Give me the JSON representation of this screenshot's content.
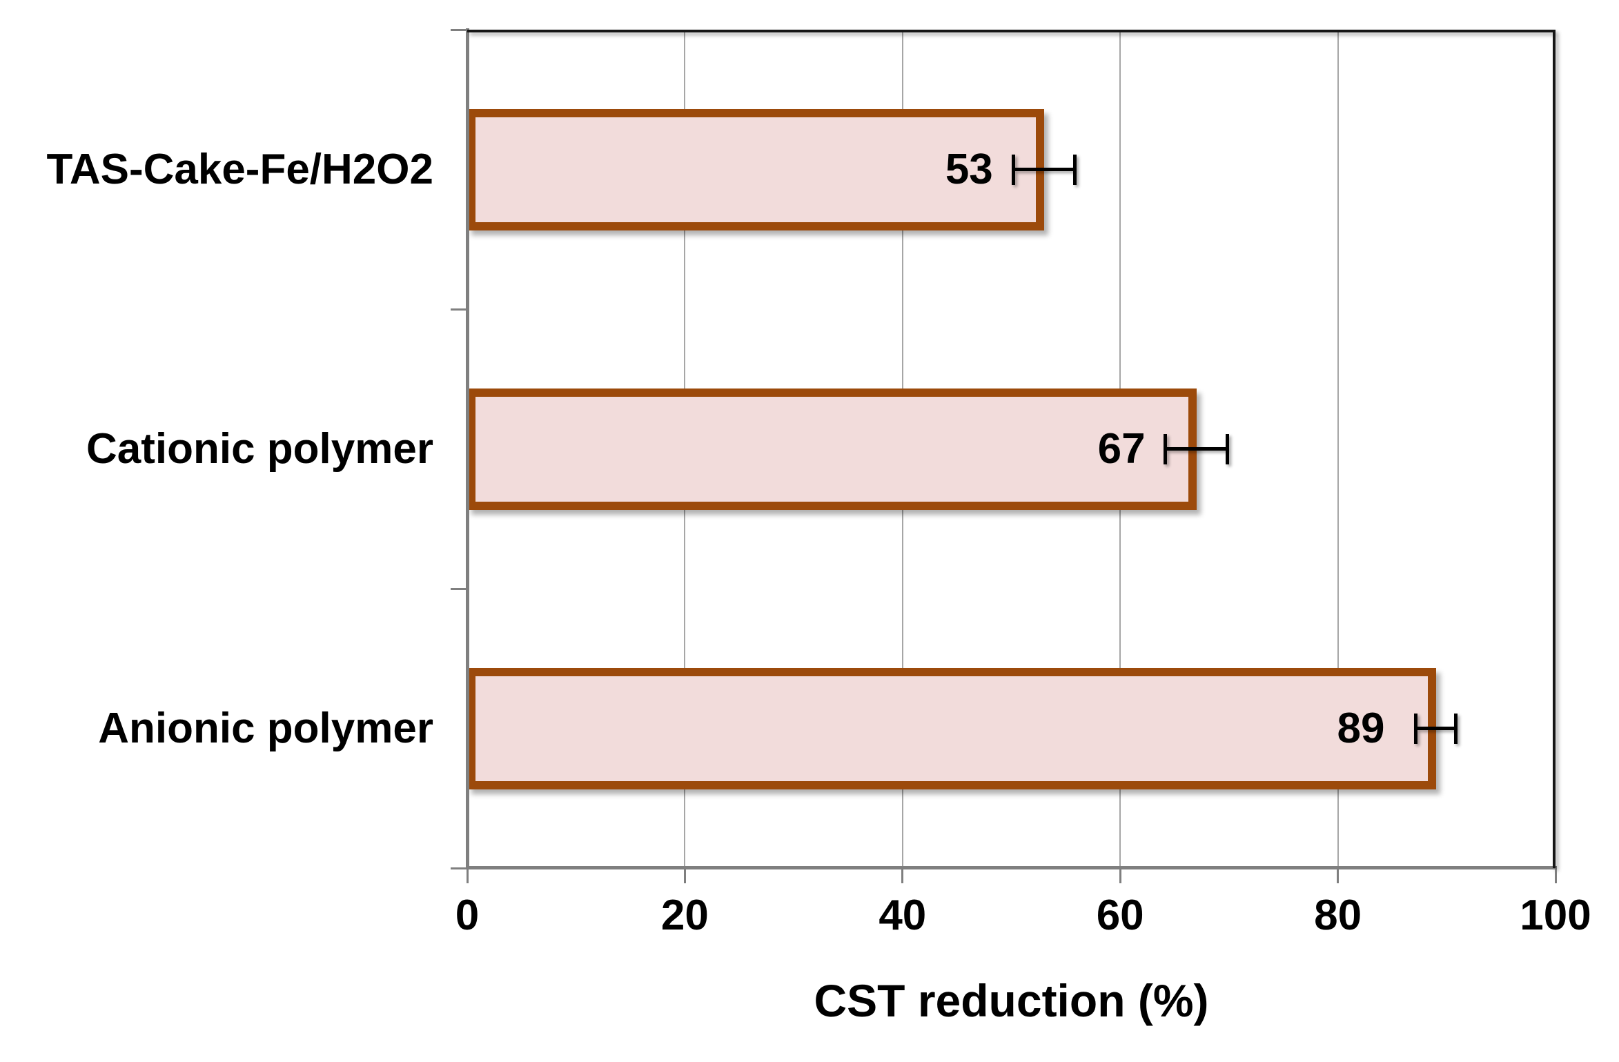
{
  "figure": {
    "background": "#FFFFFF"
  },
  "chart_data": {
    "type": "bar",
    "orientation": "horizontal",
    "title": "",
    "xlabel": "CST reduction (%)",
    "ylabel": "",
    "categories": [
      "TAS-Cake-Fe/H2O2",
      "Cationic polymer",
      "Anionic polymer"
    ],
    "values": [
      53,
      67,
      89
    ],
    "value_labels": [
      "53",
      "67",
      "89"
    ],
    "error_bars": [
      3,
      3,
      2
    ],
    "xlim": [
      0,
      100
    ],
    "xticks": [
      0,
      20,
      40,
      60,
      80,
      100
    ],
    "xtick_labels": [
      "0",
      "20",
      "40",
      "60",
      "80",
      "100"
    ],
    "gridlines_at": [
      20,
      40,
      60,
      80
    ],
    "grid": "vertical",
    "legend_position": "none",
    "colors": {
      "bar_fill": "#F2DCDB",
      "bar_border": "#9C4A0B",
      "error_bar": "#000000",
      "axis_line": "#7F7F7F",
      "gridline": "#A6A6A6",
      "plot_border": "#161616",
      "label_text": "#000000"
    }
  }
}
